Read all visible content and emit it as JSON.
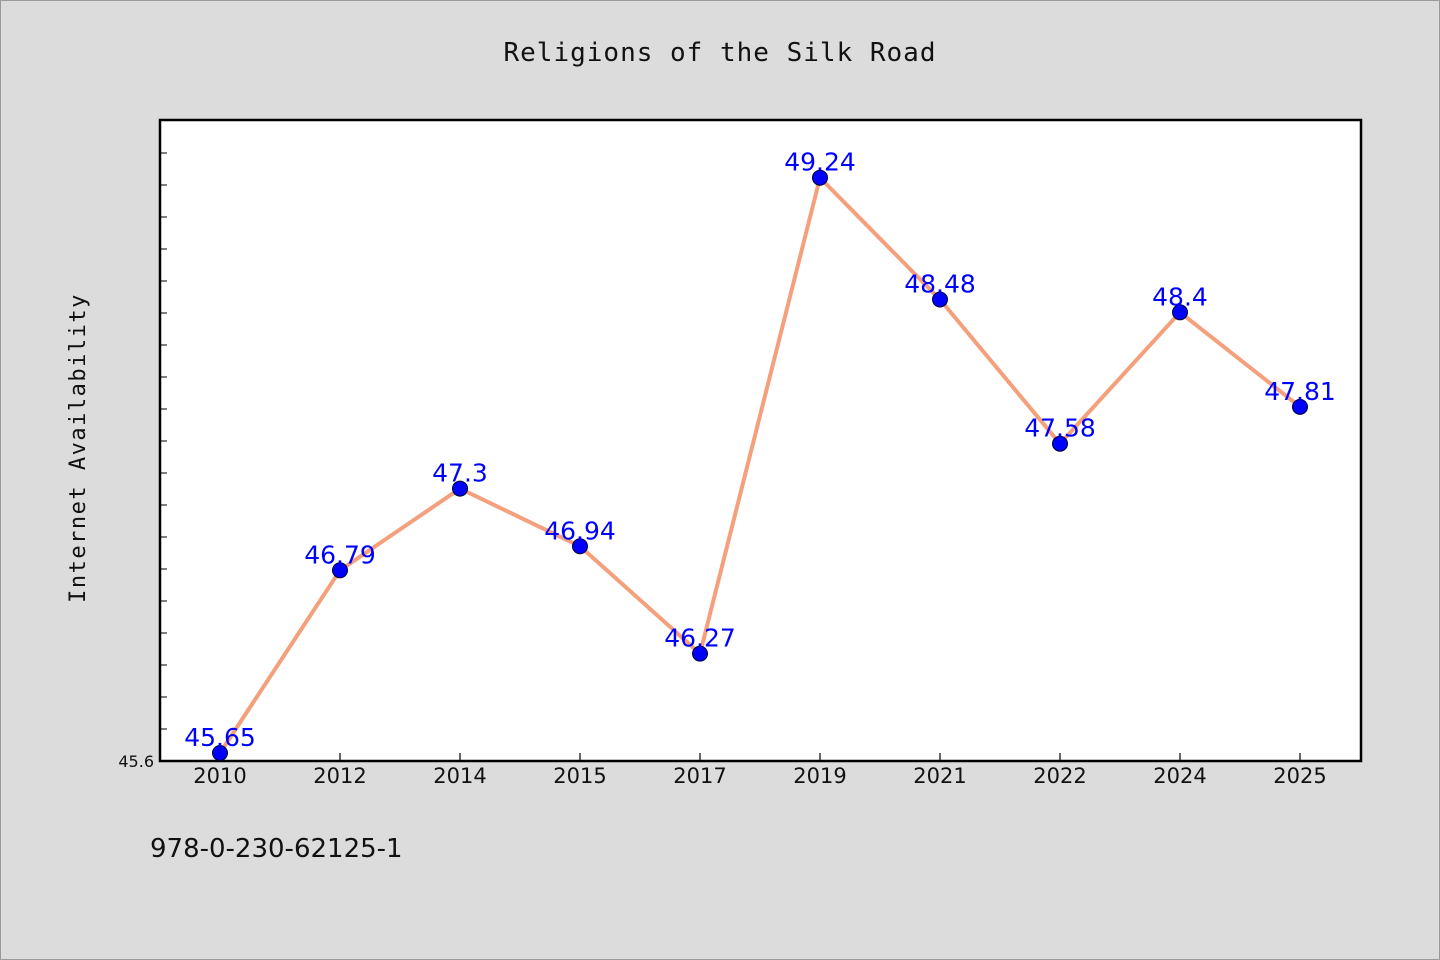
{
  "chart_data": {
    "type": "line",
    "title": "Religions of the Silk Road",
    "xlabel": "",
    "ylabel": "Internet Availability",
    "categories": [
      "2010",
      "2012",
      "2014",
      "2015",
      "2017",
      "2019",
      "2021",
      "2022",
      "2024",
      "2025"
    ],
    "series": [
      {
        "values": [
          45.65,
          46.79,
          47.3,
          46.94,
          46.27,
          49.24,
          48.48,
          47.58,
          48.4,
          47.81
        ],
        "labels": [
          "45.65",
          "46.79",
          "47.3",
          "46.94",
          "46.27",
          "49.24",
          "48.48",
          "47.58",
          "48.4",
          "47.81"
        ]
      }
    ],
    "ylim": [
      45.6,
      49.6
    ],
    "yticks": [
      "45.6"
    ],
    "grid": false,
    "legend": "none",
    "colors": {
      "line": "#f4a07c",
      "marker": "#0000ff",
      "label": "#0000ff",
      "background": "#dcdcdc",
      "plot_background": "#ffffff"
    }
  },
  "footer": {
    "isbn": "978-0-230-62125-1"
  }
}
